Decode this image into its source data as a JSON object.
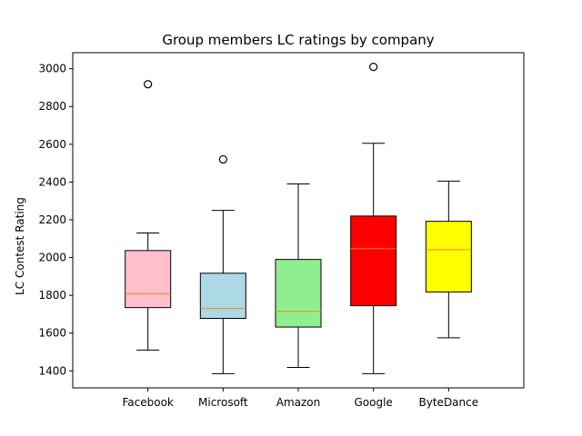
{
  "chart_data": {
    "type": "boxplot",
    "title": "Group members LC ratings by company",
    "xlabel": "",
    "ylabel": "LC Contest Rating",
    "ylim": [
      1310,
      3085
    ],
    "yticks": [
      1400,
      1600,
      1800,
      2000,
      2200,
      2400,
      2600,
      2800,
      3000
    ],
    "grid": false,
    "categories": [
      "Facebook",
      "Microsoft",
      "Amazon",
      "Google",
      "ByteDance"
    ],
    "boxes": [
      {
        "name": "Facebook",
        "color": "#ffc0cb",
        "whisker_low": 1510,
        "q1": 1735,
        "median": 1808,
        "q3": 2037,
        "whisker_high": 2130,
        "outliers": [
          2918
        ]
      },
      {
        "name": "Microsoft",
        "color": "#add8e6",
        "whisker_low": 1385,
        "q1": 1678,
        "median": 1730,
        "q3": 1917,
        "whisker_high": 2250,
        "outliers": [
          2520
        ]
      },
      {
        "name": "Amazon",
        "color": "#90ee90",
        "whisker_low": 1418,
        "q1": 1632,
        "median": 1715,
        "q3": 1990,
        "whisker_high": 2390,
        "outliers": []
      },
      {
        "name": "Google",
        "color": "#ff0000",
        "whisker_low": 1385,
        "q1": 1745,
        "median": 2047,
        "q3": 2220,
        "whisker_high": 2605,
        "outliers": [
          3010
        ]
      },
      {
        "name": "ByteDance",
        "color": "#ffff00",
        "whisker_low": 1575,
        "q1": 1818,
        "median": 2042,
        "q3": 2192,
        "whisker_high": 2405,
        "outliers": []
      }
    ],
    "median_color": "#ff7f0e"
  }
}
